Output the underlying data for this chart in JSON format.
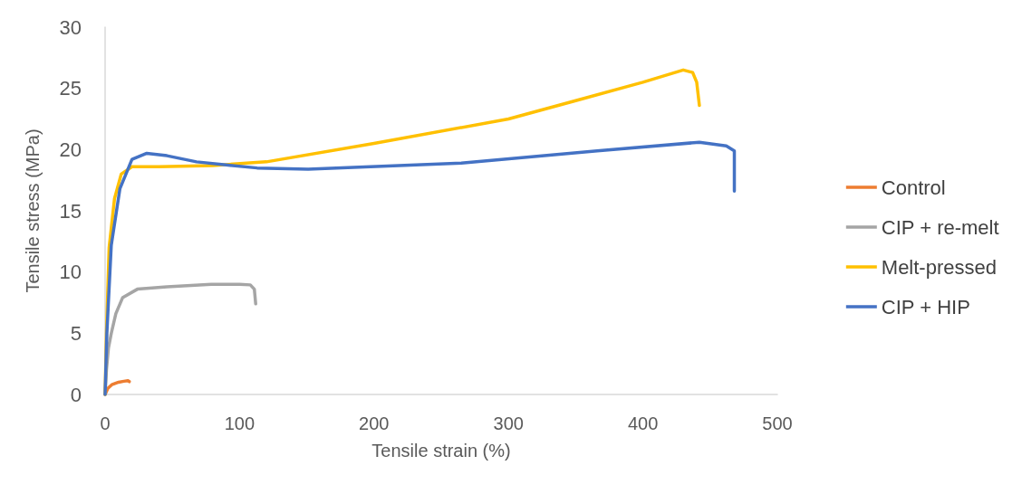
{
  "chart_data": {
    "type": "line",
    "xlabel": "Tensile strain (%)",
    "ylabel": "Tensile stress (MPa)",
    "xlim": [
      0,
      500
    ],
    "xticks": [
      0,
      100,
      200,
      300,
      400,
      500
    ],
    "ylim": [
      0,
      30
    ],
    "yticks": [
      0,
      5,
      10,
      15,
      20,
      25,
      30
    ],
    "grid": false,
    "legend": "right",
    "marker": "none",
    "line_style": "solid",
    "series": [
      {
        "name": "Control",
        "color": "#ed7d31",
        "x": [
          0,
          2,
          5,
          10,
          14,
          17,
          18
        ],
        "values": [
          0,
          0.5,
          0.8,
          1.0,
          1.08,
          1.12,
          1.05
        ]
      },
      {
        "name": "CIP + re-melt",
        "color": "#a5a5a5",
        "x": [
          0,
          1,
          2.5,
          4.6,
          8,
          13,
          24,
          46,
          79,
          100,
          108,
          111,
          112
        ],
        "values": [
          0,
          2,
          3.8,
          5.0,
          6.6,
          7.9,
          8.6,
          8.8,
          9.0,
          9.0,
          8.95,
          8.6,
          7.4
        ]
      },
      {
        "name": "Melt-pressed",
        "color": "#ffc000",
        "x": [
          0,
          1,
          3,
          7,
          12,
          20,
          40,
          80,
          120,
          200,
          300,
          350,
          400,
          430,
          437,
          440,
          442
        ],
        "values": [
          0,
          5,
          12,
          16,
          18,
          18.6,
          18.6,
          18.7,
          19.0,
          20.5,
          22.5,
          24.0,
          25.5,
          26.5,
          26.3,
          25.5,
          23.6
        ]
      },
      {
        "name": "CIP + HIP",
        "color": "#4472c4",
        "x": [
          0,
          1.3,
          4.6,
          11,
          20,
          31,
          46,
          68,
          90,
          113,
          151,
          265,
          366,
          442,
          462,
          468,
          468
        ],
        "values": [
          0,
          5,
          12.2,
          16.8,
          19.2,
          19.7,
          19.5,
          19.0,
          18.75,
          18.5,
          18.4,
          18.9,
          19.9,
          20.6,
          20.3,
          19.9,
          16.6
        ]
      }
    ]
  }
}
